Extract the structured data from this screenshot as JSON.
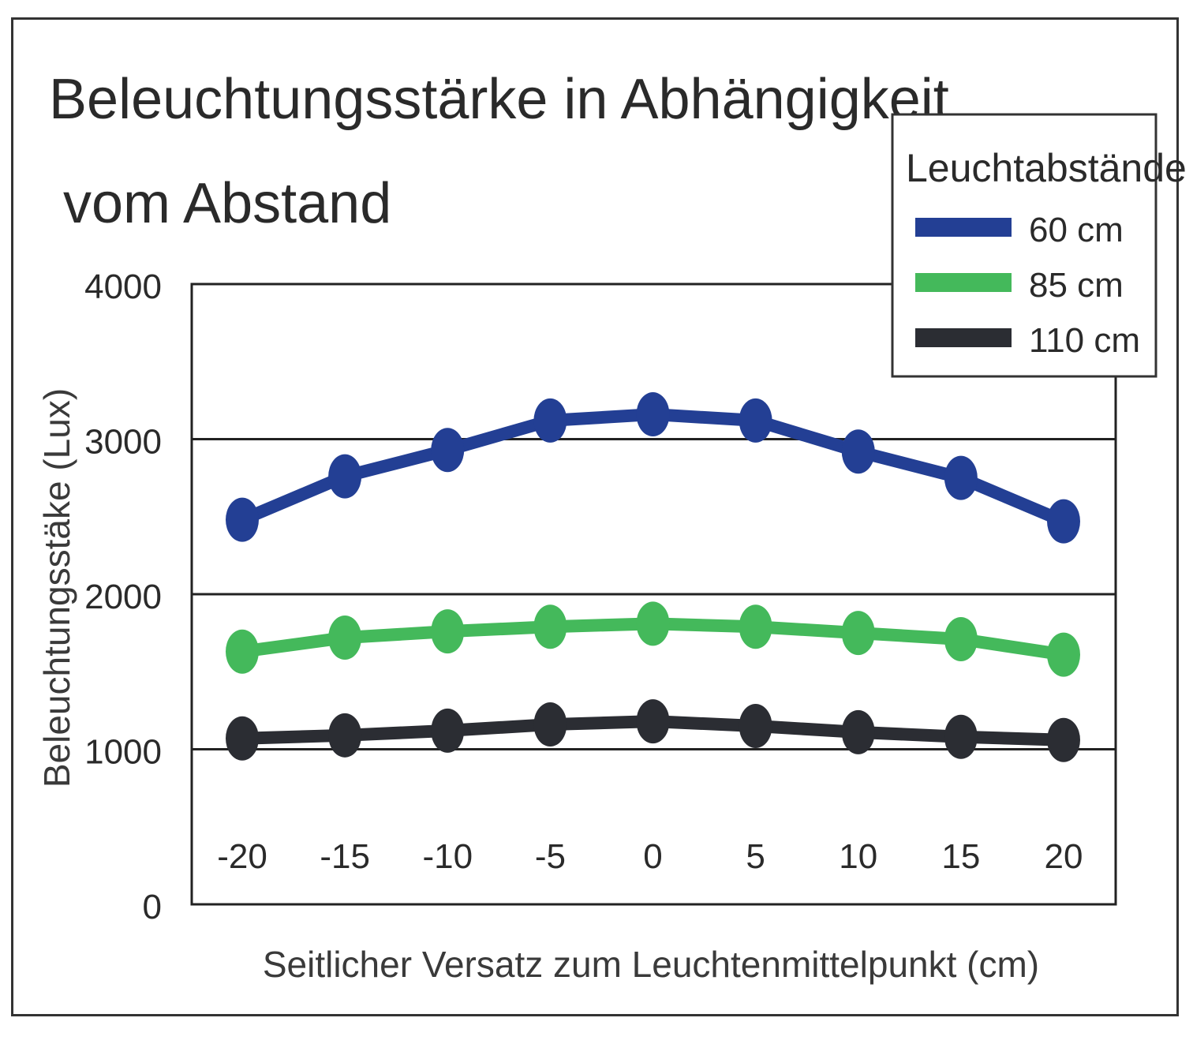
{
  "chart_data": {
    "type": "line",
    "title_lines": [
      "Beleuchtungsstärke in Abhängigkeit",
      "vom Abstand"
    ],
    "xlabel": "Seitlicher Versatz zum Leuchtenmittelpunkt (cm)",
    "ylabel": "Beleuchtungsstäke (Lux)",
    "x": [
      -20,
      -15,
      -10,
      -5,
      0,
      5,
      10,
      15,
      20
    ],
    "x_tick_labels": [
      "-20",
      "-15",
      "-10",
      "-5",
      "0",
      "5",
      "10",
      "15",
      "20"
    ],
    "y_tick_labels": [
      "0",
      "1000",
      "2000",
      "3000",
      "4000"
    ],
    "yticks": [
      0,
      1000,
      2000,
      3000,
      4000
    ],
    "ylim": [
      0,
      4000
    ],
    "grid": "horizontal at 1000, 2000, 3000",
    "legend": {
      "title": "Leuchtabstände",
      "placement": "top-right"
    },
    "series": [
      {
        "name": "60 cm",
        "color": "#233f94",
        "values": [
          2480,
          2760,
          2930,
          3120,
          3160,
          3120,
          2920,
          2750,
          2470
        ]
      },
      {
        "name": "85 cm",
        "color": "#44b95b",
        "values": [
          1630,
          1720,
          1760,
          1790,
          1810,
          1790,
          1750,
          1710,
          1610
        ]
      },
      {
        "name": "110 cm",
        "color": "#2b2d33",
        "values": [
          1070,
          1090,
          1120,
          1160,
          1180,
          1150,
          1110,
          1080,
          1060
        ]
      }
    ]
  }
}
